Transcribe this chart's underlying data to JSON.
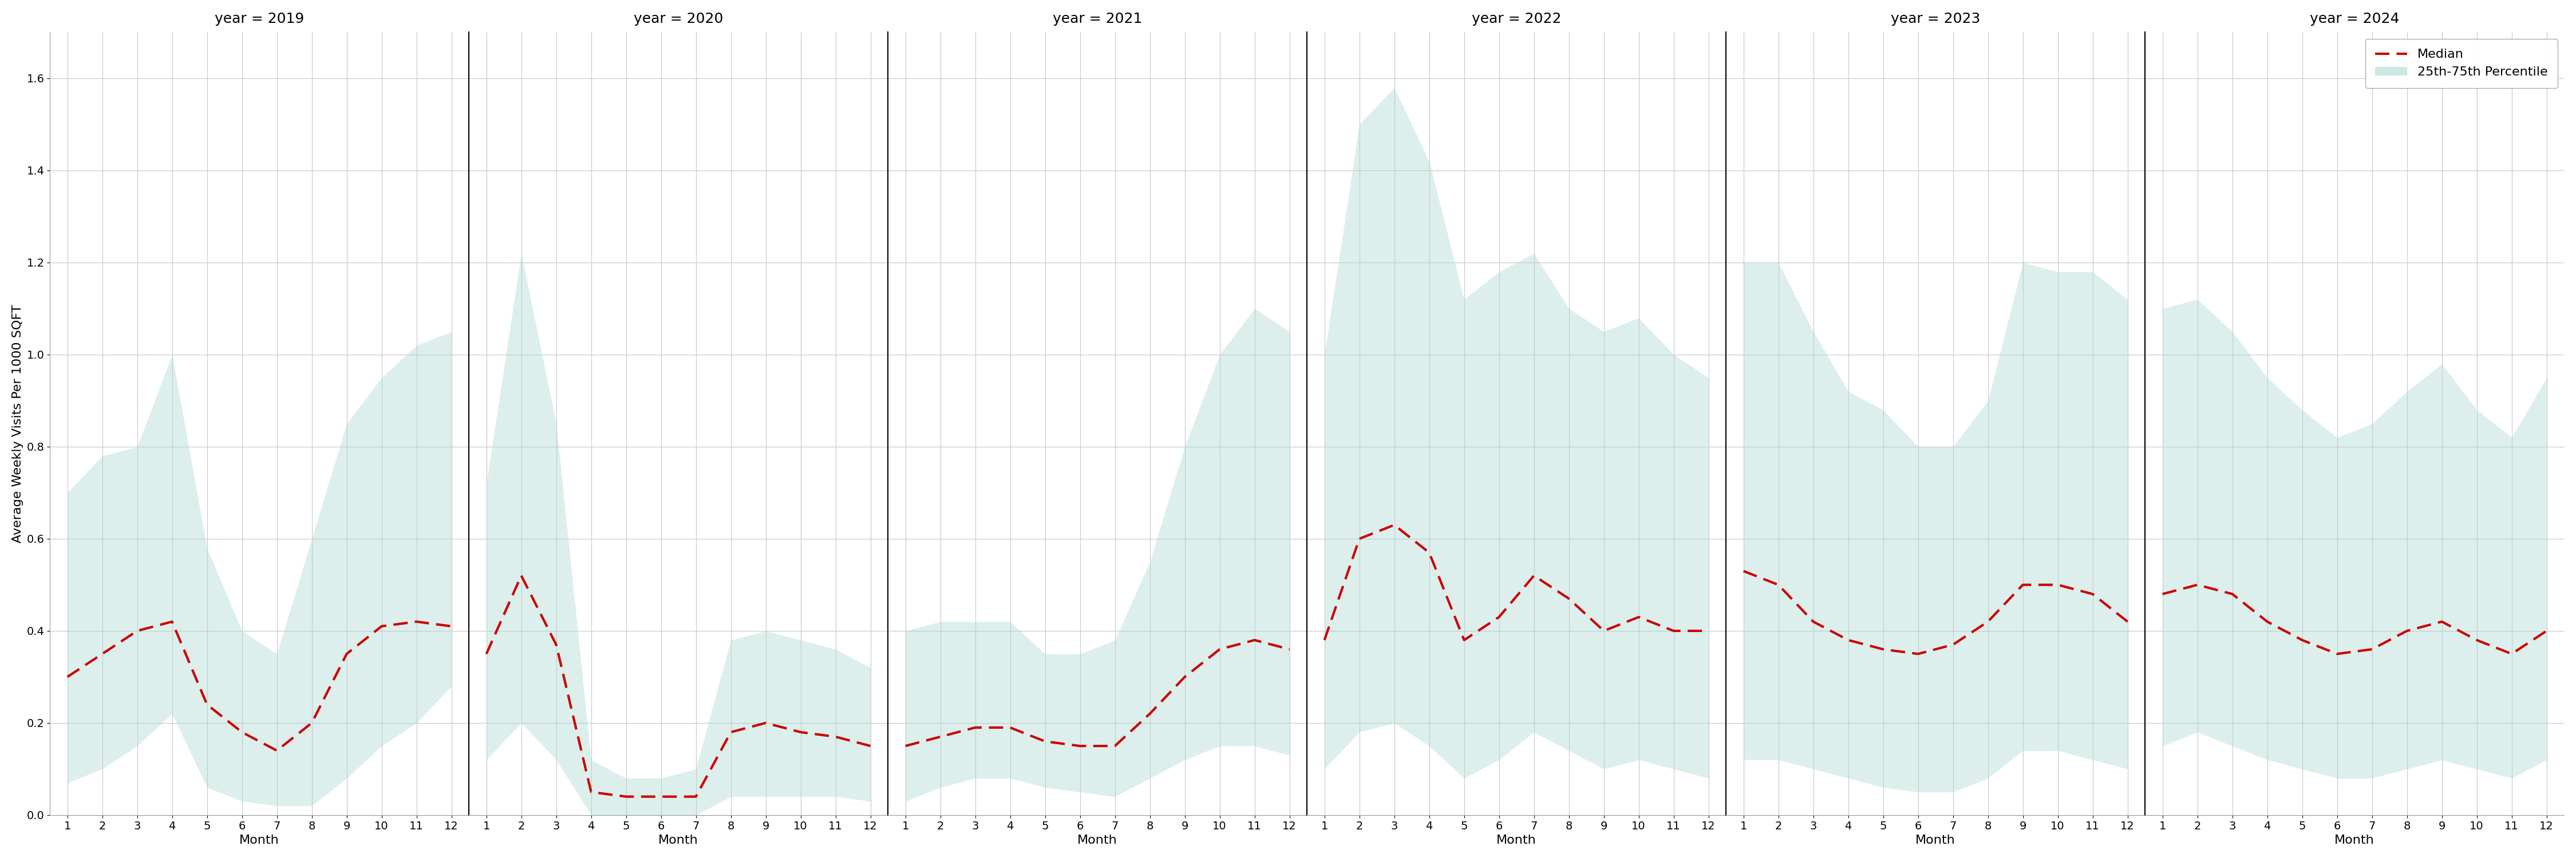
{
  "years": [
    2019,
    2020,
    2021,
    2022,
    2023,
    2024
  ],
  "months": [
    1,
    2,
    3,
    4,
    5,
    6,
    7,
    8,
    9,
    10,
    11,
    12
  ],
  "median": {
    "2019": [
      0.3,
      0.35,
      0.4,
      0.42,
      0.24,
      0.18,
      0.14,
      0.2,
      0.35,
      0.41,
      0.42,
      0.41
    ],
    "2020": [
      0.35,
      0.52,
      0.37,
      0.05,
      0.04,
      0.04,
      0.04,
      0.18,
      0.2,
      0.18,
      0.17,
      0.15
    ],
    "2021": [
      0.15,
      0.17,
      0.19,
      0.19,
      0.16,
      0.15,
      0.15,
      0.22,
      0.3,
      0.36,
      0.38,
      0.36
    ],
    "2022": [
      0.38,
      0.6,
      0.63,
      0.57,
      0.38,
      0.43,
      0.52,
      0.47,
      0.4,
      0.43,
      0.4,
      0.4
    ],
    "2023": [
      0.53,
      0.5,
      0.42,
      0.38,
      0.36,
      0.35,
      0.37,
      0.42,
      0.5,
      0.5,
      0.48,
      0.42
    ],
    "2024": [
      0.48,
      0.5,
      0.48,
      0.42,
      0.38,
      0.35,
      0.36,
      0.4,
      0.42,
      0.38,
      0.35,
      0.4
    ]
  },
  "p25": {
    "2019": [
      0.07,
      0.1,
      0.15,
      0.22,
      0.06,
      0.03,
      0.02,
      0.02,
      0.08,
      0.15,
      0.2,
      0.28
    ],
    "2020": [
      0.12,
      0.2,
      0.12,
      0.0,
      0.0,
      0.0,
      0.0,
      0.04,
      0.04,
      0.04,
      0.04,
      0.03
    ],
    "2021": [
      0.03,
      0.06,
      0.08,
      0.08,
      0.06,
      0.05,
      0.04,
      0.08,
      0.12,
      0.15,
      0.15,
      0.13
    ],
    "2022": [
      0.1,
      0.18,
      0.2,
      0.15,
      0.08,
      0.12,
      0.18,
      0.14,
      0.1,
      0.12,
      0.1,
      0.08
    ],
    "2023": [
      0.12,
      0.12,
      0.1,
      0.08,
      0.06,
      0.05,
      0.05,
      0.08,
      0.14,
      0.14,
      0.12,
      0.1
    ],
    "2024": [
      0.15,
      0.18,
      0.15,
      0.12,
      0.1,
      0.08,
      0.08,
      0.1,
      0.12,
      0.1,
      0.08,
      0.12
    ]
  },
  "p75": {
    "2019": [
      0.7,
      0.78,
      0.8,
      1.0,
      0.58,
      0.4,
      0.35,
      0.6,
      0.85,
      0.95,
      1.02,
      1.05
    ],
    "2020": [
      0.72,
      1.22,
      0.85,
      0.12,
      0.08,
      0.08,
      0.1,
      0.38,
      0.4,
      0.38,
      0.36,
      0.32
    ],
    "2021": [
      0.4,
      0.42,
      0.42,
      0.42,
      0.35,
      0.35,
      0.38,
      0.55,
      0.8,
      1.0,
      1.1,
      1.05
    ],
    "2022": [
      1.0,
      1.5,
      1.58,
      1.42,
      1.12,
      1.18,
      1.22,
      1.1,
      1.05,
      1.08,
      1.0,
      0.95
    ],
    "2023": [
      1.2,
      1.2,
      1.05,
      0.92,
      0.88,
      0.8,
      0.8,
      0.9,
      1.2,
      1.18,
      1.18,
      1.12
    ],
    "2024": [
      1.1,
      1.12,
      1.05,
      0.95,
      0.88,
      0.82,
      0.85,
      0.92,
      0.98,
      0.88,
      0.82,
      0.95
    ]
  },
  "fill_color": "#aad9d1",
  "fill_alpha": 0.4,
  "line_color": "#cc0000",
  "line_style": "--",
  "line_width": 3.0,
  "ylabel": "Average Weekly Visits Per 1000 SQFT",
  "xlabel": "Month",
  "ylim": [
    0.0,
    1.7
  ],
  "yticks": [
    0.0,
    0.2,
    0.4,
    0.6,
    0.8,
    1.0,
    1.2,
    1.4,
    1.6
  ],
  "bg_color": "#ffffff",
  "grid_color": "#c8c8c8",
  "title_fontsize": 18,
  "label_fontsize": 16,
  "tick_fontsize": 14,
  "legend_fontsize": 16
}
